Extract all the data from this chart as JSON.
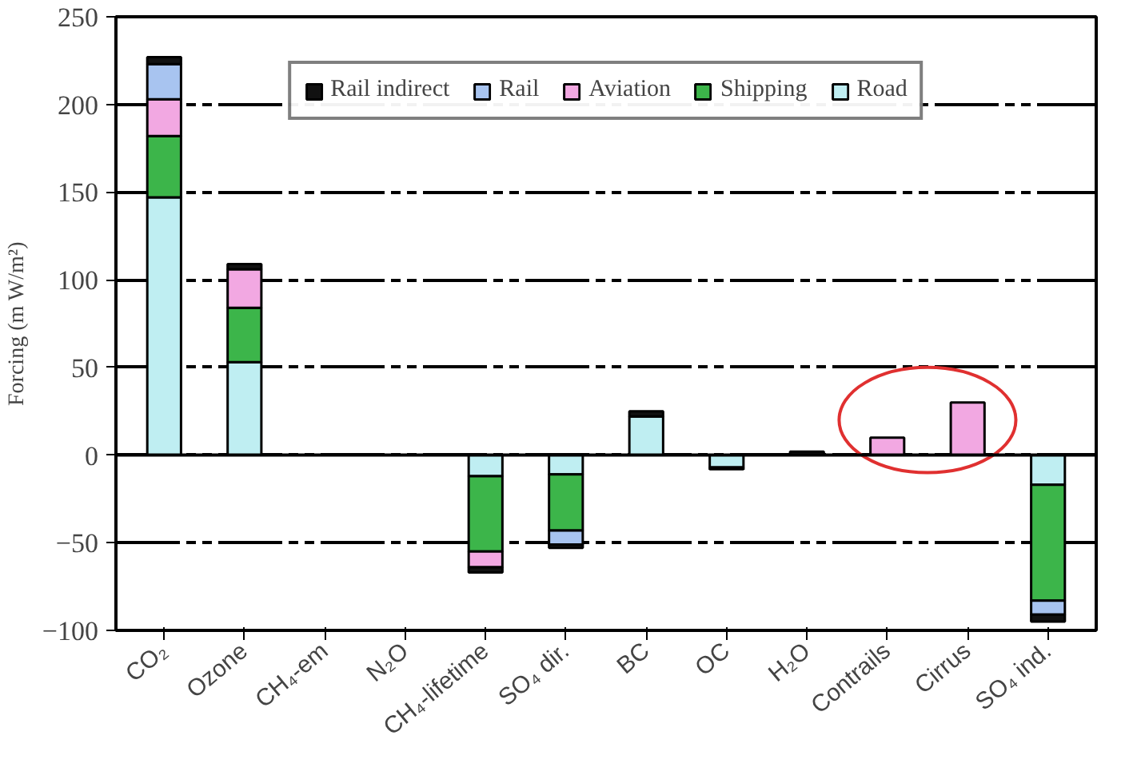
{
  "chart_data": {
    "type": "bar",
    "stacked": true,
    "ylabel": "Forcing (m W/m²)",
    "categories": [
      "CO₂",
      "Ozone",
      "CH₄-em",
      "N₂O",
      "CH₄-lifetime",
      "SO₄ dir.",
      "BC",
      "OC",
      "H₂O",
      "Contrails",
      "Cirrus",
      "SO₄ ind."
    ],
    "series": [
      {
        "name": "Road",
        "color": "#bfeef2",
        "values": [
          147,
          53,
          null,
          null,
          -12,
          -11,
          22,
          -7,
          null,
          null,
          null,
          -17
        ]
      },
      {
        "name": "Shipping",
        "color": "#3cb54a",
        "values": [
          35,
          31,
          null,
          null,
          -43,
          -32,
          null,
          null,
          null,
          null,
          null,
          -66
        ]
      },
      {
        "name": "Aviation",
        "color": "#f2a8e2",
        "values": [
          21,
          22,
          null,
          null,
          -9,
          null,
          null,
          null,
          null,
          10,
          30,
          null
        ]
      },
      {
        "name": "Rail",
        "color": "#a8c4f0",
        "values": [
          20,
          null,
          null,
          null,
          null,
          -8,
          null,
          null,
          null,
          null,
          null,
          -8
        ]
      },
      {
        "name": "Rail indirect",
        "color": "#111111",
        "values": [
          4,
          3,
          null,
          null,
          -3,
          -2,
          3,
          -1,
          2,
          null,
          null,
          -4
        ]
      }
    ],
    "ylim": [
      -100,
      250
    ],
    "yticks": [
      -100,
      -50,
      0,
      50,
      100,
      150,
      200,
      250
    ],
    "grid": "y",
    "legend": "top"
  }
}
